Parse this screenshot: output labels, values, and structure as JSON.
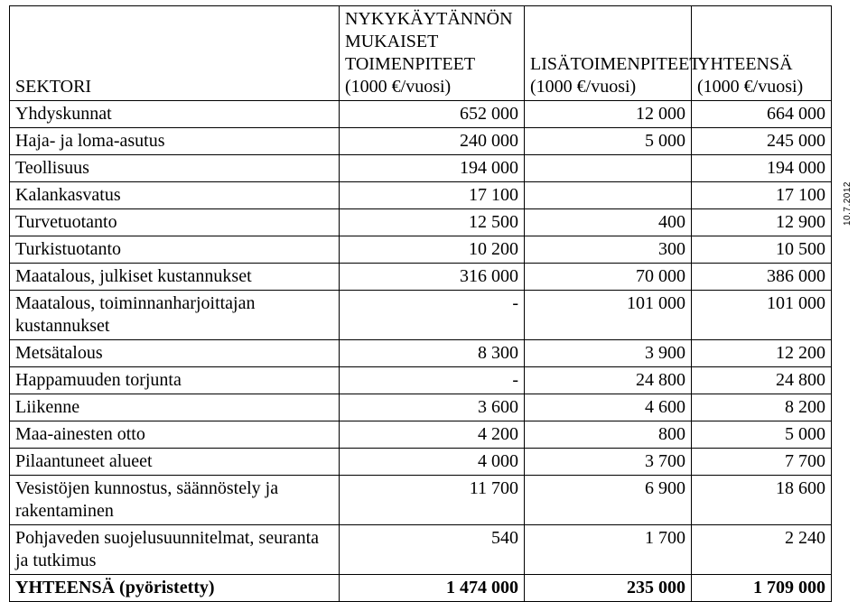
{
  "sidenote": "10.7.2012",
  "header": {
    "sektori": "SEKTORI",
    "col1_line1": "NYKYKÄYTÄNNÖN",
    "col1_line2": "MUKAISET",
    "col1_line3": "TOIMENPITEET",
    "col1_line4": "(1000 €/vuosi)",
    "col2_line1": "LISÄTOIMENPITEET",
    "col2_line2": "(1000 €/vuosi)",
    "col3_line1": "YHTEENSÄ",
    "col3_line2": "(1000 €/vuosi)"
  },
  "rows": [
    {
      "label": "Yhdyskunnat",
      "c1": "652 000",
      "c2": "12 000",
      "c3": "664 000"
    },
    {
      "label": "Haja- ja loma-asutus",
      "c1": "240 000",
      "c2": "5 000",
      "c3": "245 000"
    },
    {
      "label": "Teollisuus",
      "c1": "194 000",
      "c2": "",
      "c3": "194 000"
    },
    {
      "label": "Kalankasvatus",
      "c1": "17 100",
      "c2": "",
      "c3": "17 100"
    },
    {
      "label": "Turvetuotanto",
      "c1": "12 500",
      "c2": "400",
      "c3": "12 900"
    },
    {
      "label": "Turkistuotanto",
      "c1": "10 200",
      "c2": "300",
      "c3": "10 500"
    },
    {
      "label": "Maatalous, julkiset kustannukset",
      "c1": "316 000",
      "c2": "70 000",
      "c3": "386 000"
    },
    {
      "label": "Maatalous, toiminnanharjoittajan kustannukset",
      "c1": "-",
      "c2": "101 000",
      "c3": "101 000"
    },
    {
      "label": "Metsätalous",
      "c1": "8 300",
      "c2": "3 900",
      "c3": "12 200"
    },
    {
      "label": "Happamuuden torjunta",
      "c1": "-",
      "c2": "24 800",
      "c3": "24 800"
    },
    {
      "label": "Liikenne",
      "c1": "3 600",
      "c2": "4 600",
      "c3": "8 200"
    },
    {
      "label": "Maa-ainesten otto",
      "c1": "4 200",
      "c2": "800",
      "c3": "5 000"
    },
    {
      "label": "Pilaantuneet alueet",
      "c1": "4 000",
      "c2": "3 700",
      "c3": "7 700"
    },
    {
      "label": "Vesistöjen kunnostus, säännöstely ja rakentaminen",
      "c1": "11 700",
      "c2": "6 900",
      "c3": "18 600"
    },
    {
      "label": "Pohjaveden suojelusuunnitelmat, seuranta ja tutkimus",
      "c1": "540",
      "c2": "1 700",
      "c3": "2 240"
    }
  ],
  "total": {
    "label": "YHTEENSÄ (pyöristetty)",
    "c1": "1 474 000",
    "c2": "235 000",
    "c3": "1 709 000"
  }
}
